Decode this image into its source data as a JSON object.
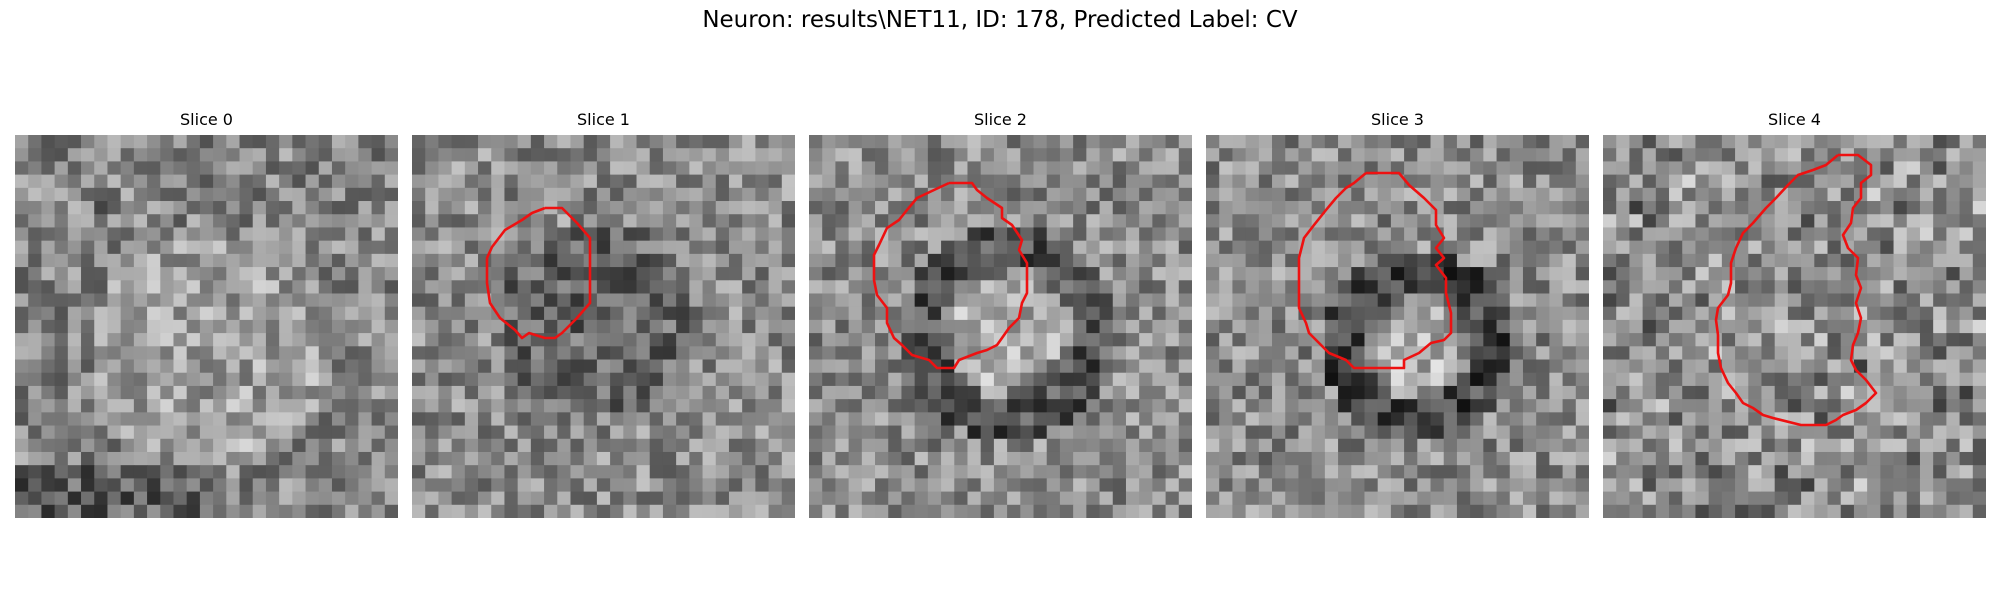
{
  "figure": {
    "title": "Neuron: results\\NET11, ID: 178, Predicted Label: CV"
  },
  "panels": [
    {
      "title": "Slice 0",
      "has_contour": false,
      "seed": 11,
      "pattern": "diffuse"
    },
    {
      "title": "Slice 1",
      "has_contour": true,
      "seed": 23,
      "pattern": "dark-blob"
    },
    {
      "title": "Slice 2",
      "has_contour": true,
      "seed": 37,
      "pattern": "ring"
    },
    {
      "title": "Slice 3",
      "has_contour": true,
      "seed": 51,
      "pattern": "ring-strong"
    },
    {
      "title": "Slice 4",
      "has_contour": true,
      "seed": 73,
      "pattern": "noisy"
    }
  ],
  "colors": {
    "contour": "#ee1111",
    "background": "#ffffff"
  }
}
